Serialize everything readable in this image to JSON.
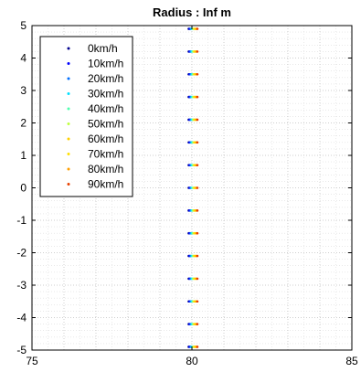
{
  "chart_data": {
    "type": "scatter",
    "title": "Radius : Inf m",
    "xlabel": "",
    "ylabel": "",
    "xlim": [
      75,
      85
    ],
    "ylim": [
      -5,
      5
    ],
    "x_ticks": [
      75,
      80,
      85
    ],
    "y_ticks": [
      5,
      4,
      3,
      2,
      1,
      0,
      -1,
      -2,
      -3,
      -4,
      -5
    ],
    "minor_grid": true,
    "grid": true,
    "legend_position": "top-left",
    "y_points": [
      -4.9,
      -4.2,
      -3.5,
      -2.8,
      -2.1,
      -1.4,
      -0.7,
      0,
      0.7,
      1.4,
      2.1,
      2.8,
      3.5,
      4.2,
      4.9
    ],
    "series": [
      {
        "name": "0km/h",
        "color": "#00008f",
        "x": 79.9
      },
      {
        "name": "10km/h",
        "color": "#0000ff",
        "x": 79.93
      },
      {
        "name": "20km/h",
        "color": "#006fff",
        "x": 79.96
      },
      {
        "name": "30km/h",
        "color": "#00dfff",
        "x": 79.99
      },
      {
        "name": "40km/h",
        "color": "#50ffaf",
        "x": 80.02
      },
      {
        "name": "50km/h",
        "color": "#bfff40",
        "x": 80.05
      },
      {
        "name": "60km/h",
        "color": "#ffd000",
        "x": 80.08
      },
      {
        "name": "70km/h",
        "color": "#ffe000",
        "x": 80.11
      },
      {
        "name": "80km/h",
        "color": "#ff9f00",
        "x": 80.14
      },
      {
        "name": "90km/h",
        "color": "#e84000",
        "x": 80.17
      }
    ]
  }
}
